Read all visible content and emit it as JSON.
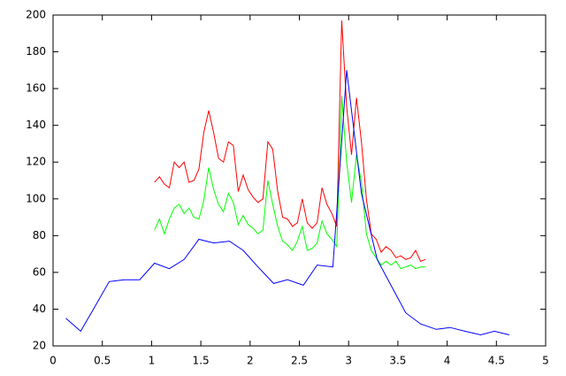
{
  "chart_data": {
    "type": "line",
    "xlim": [
      0,
      5
    ],
    "xticks": [
      0,
      0.5,
      1,
      1.5,
      2,
      2.5,
      3,
      3.5,
      4,
      4.5,
      5
    ],
    "ylim": [
      20,
      200
    ],
    "yticks": [
      20,
      40,
      60,
      80,
      100,
      120,
      140,
      160,
      180,
      200
    ],
    "series": [
      {
        "color": "#ff0000",
        "x": [
          1.03,
          1.08,
          1.13,
          1.18,
          1.23,
          1.28,
          1.33,
          1.38,
          1.43,
          1.48,
          1.53,
          1.58,
          1.63,
          1.68,
          1.73,
          1.78,
          1.83,
          1.88,
          1.93,
          1.98,
          2.03,
          2.08,
          2.13,
          2.18,
          2.23,
          2.28,
          2.33,
          2.38,
          2.43,
          2.48,
          2.53,
          2.58,
          2.63,
          2.68,
          2.73,
          2.78,
          2.83,
          2.88,
          2.93,
          2.98,
          3.03,
          3.08,
          3.13,
          3.18,
          3.23,
          3.28,
          3.33,
          3.38,
          3.43,
          3.48,
          3.53,
          3.58,
          3.63,
          3.68,
          3.73,
          3.78
        ],
        "values": [
          109,
          112,
          108,
          106,
          120,
          117,
          120,
          109,
          110,
          116,
          136,
          148,
          136,
          122,
          120,
          131,
          129,
          104,
          113,
          105,
          101,
          98,
          100,
          131,
          127,
          104,
          90,
          89,
          85,
          87,
          100,
          87,
          84,
          87,
          106,
          97,
          92,
          85,
          197,
          150,
          124,
          155,
          131,
          100,
          81,
          78,
          71,
          74,
          72,
          68,
          69,
          67,
          68,
          72,
          66,
          67
        ]
      },
      {
        "color": "#00ff00",
        "x": [
          1.03,
          1.08,
          1.13,
          1.18,
          1.23,
          1.28,
          1.33,
          1.38,
          1.43,
          1.48,
          1.53,
          1.58,
          1.63,
          1.68,
          1.73,
          1.78,
          1.83,
          1.88,
          1.93,
          1.98,
          2.03,
          2.08,
          2.13,
          2.18,
          2.23,
          2.28,
          2.33,
          2.38,
          2.43,
          2.48,
          2.53,
          2.58,
          2.63,
          2.68,
          2.73,
          2.78,
          2.83,
          2.88,
          2.93,
          2.98,
          3.03,
          3.08,
          3.13,
          3.18,
          3.23,
          3.28,
          3.33,
          3.38,
          3.43,
          3.48,
          3.53,
          3.58,
          3.63,
          3.68,
          3.73,
          3.78
        ],
        "values": [
          83,
          89,
          81,
          89,
          95,
          97,
          92,
          95,
          90,
          89,
          99,
          117,
          105,
          97,
          93,
          103,
          98,
          86,
          91,
          86,
          84,
          81,
          83,
          110,
          97,
          85,
          77,
          75,
          72,
          77,
          85,
          72,
          73,
          76,
          88,
          81,
          78,
          74,
          156,
          120,
          98,
          124,
          109,
          81,
          72,
          68,
          64,
          66,
          64,
          66,
          62,
          63,
          64,
          62,
          63,
          63
        ]
      },
      {
        "color": "#0000ff",
        "x": [
          0.13,
          0.28,
          0.41,
          0.57,
          0.72,
          0.88,
          1.03,
          1.18,
          1.33,
          1.48,
          1.63,
          1.79,
          1.93,
          2.08,
          2.24,
          2.38,
          2.54,
          2.68,
          2.84,
          2.98,
          3.13,
          3.29,
          3.44,
          3.58,
          3.73,
          3.89,
          4.03,
          4.18,
          4.34,
          4.48,
          4.63
        ],
        "values": [
          35,
          28,
          40,
          55,
          56,
          56,
          65,
          62,
          67,
          78,
          76,
          77,
          72,
          63,
          54,
          56,
          53,
          64,
          63,
          170,
          103,
          67,
          52,
          38,
          32,
          29,
          30,
          28,
          26,
          28,
          26
        ]
      }
    ]
  }
}
